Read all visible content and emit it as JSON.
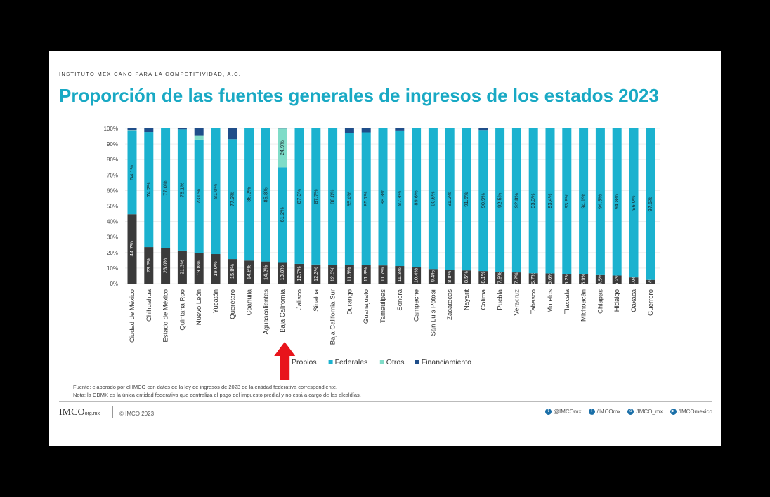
{
  "header": {
    "org": "INSTITUTO MEXICANO PARA LA COMPETITIVIDAD, A.C.",
    "title": "Proporción de las fuentes generales de ingresos de los estados 2023"
  },
  "colors": {
    "propios": "#3b3b3b",
    "federales": "#1bb2cf",
    "otros": "#7fdcc8",
    "financiamiento": "#1f4e8a",
    "arrow": "#e8141b",
    "title": "#19a9c4"
  },
  "chart_data": {
    "type": "bar",
    "stacked": true,
    "ylim": [
      0,
      100
    ],
    "yticks": [
      "0%",
      "10%",
      "20%",
      "30%",
      "40%",
      "50%",
      "60%",
      "70%",
      "80%",
      "90%",
      "100%"
    ],
    "categories": [
      "Ciudad de México",
      "Chihuahua",
      "Estado de México",
      "Quintana Roo",
      "Nuevo León",
      "Yucatán",
      "Querétaro",
      "Coahuila",
      "Aguascalientes",
      "Baja California",
      "Jalisco",
      "Sinaloa",
      "Baja California Sur",
      "Durango",
      "Guanajuato",
      "Tamaulipas",
      "Sonora",
      "Campeche",
      "San Luis Potosí",
      "Zacatecas",
      "Nayarit",
      "Colima",
      "Puebla",
      "Veracruz",
      "Tabasco",
      "Morelos",
      "Tlaxcala",
      "Michoacán",
      "Chiapas",
      "Hidalgo",
      "Oaxaca",
      "Guerrero"
    ],
    "series": [
      {
        "name": "Propios",
        "values": [
          44.7,
          23.5,
          23.0,
          21.3,
          19.8,
          19.0,
          15.8,
          14.8,
          14.2,
          13.8,
          12.7,
          12.3,
          12.0,
          11.8,
          11.8,
          11.7,
          11.3,
          10.4,
          9.4,
          8.8,
          8.5,
          8.1,
          7.5,
          7.2,
          6.7,
          6.6,
          6.2,
          5.9,
          5.5,
          5.2,
          4.0,
          2.4
        ]
      },
      {
        "name": "Federales",
        "values": [
          54.1,
          74.2,
          77.0,
          78.1,
          73.0,
          81.0,
          77.3,
          85.2,
          85.8,
          61.2,
          87.3,
          87.7,
          88.0,
          85.4,
          85.7,
          88.3,
          87.4,
          89.6,
          90.6,
          91.2,
          91.5,
          90.9,
          92.5,
          92.8,
          93.3,
          93.4,
          93.8,
          94.1,
          94.5,
          94.8,
          96.0,
          97.6
        ]
      },
      {
        "name": "Otros",
        "values": [
          0.2,
          0.0,
          0.0,
          0.0,
          2.4,
          0.0,
          0.0,
          0.0,
          0.0,
          24.9,
          0.0,
          0.0,
          0.0,
          0.0,
          0.0,
          0.0,
          0.0,
          0.0,
          0.0,
          0.0,
          0.0,
          0.0,
          0.0,
          0.0,
          0.0,
          0.0,
          0.0,
          0.0,
          0.0,
          0.0,
          0.0,
          0.0
        ]
      },
      {
        "name": "Financiamiento",
        "values": [
          1.0,
          2.3,
          0.0,
          0.6,
          4.8,
          0.0,
          6.9,
          0.0,
          0.0,
          0.1,
          0.0,
          0.0,
          0.0,
          2.8,
          2.5,
          0.0,
          1.3,
          0.0,
          0.0,
          0.0,
          0.0,
          1.0,
          0.0,
          0.0,
          0.0,
          0.0,
          0.0,
          0.0,
          0.0,
          0.0,
          0.0,
          0.0
        ]
      }
    ],
    "data_labels": {
      "Propios": [
        "44.7%",
        "23.5%",
        "23.0%",
        "21.3%",
        "19.8%",
        "19.0%",
        "15.8%",
        "14.8%",
        "14.2%",
        "13.8%",
        "12.7%",
        "12.3%",
        "12.0%",
        "11.8%",
        "11.8%",
        "11.7%",
        "11.3%",
        "10.4%",
        "9.4%",
        "8.8%",
        "8.5%",
        "8.1%",
        "7.5%",
        "7.2%",
        "6.7%",
        "6.6%",
        "6.2%",
        "5.9%",
        "5.5%",
        "5.2%",
        "4.0%",
        "2.4%"
      ],
      "Federales": [
        "54.1%",
        "74.2%",
        "77.0%",
        "78.1%",
        "73.0%",
        "81.0%",
        "77.3%",
        "85.2%",
        "85.8%",
        "61.2%",
        "87.3%",
        "87.7%",
        "88.0%",
        "85.4%",
        "85.7%",
        "88.3%",
        "87.4%",
        "89.6%",
        "90.6%",
        "91.2%",
        "91.5%",
        "90.9%",
        "92.5%",
        "92.8%",
        "93.3%",
        "93.4%",
        "93.8%",
        "94.1%",
        "94.5%",
        "94.8%",
        "96.0%",
        "97.6%"
      ],
      "Otros": [
        "",
        "",
        "",
        "",
        "",
        "",
        "",
        "",
        "",
        "24.9%",
        "",
        "",
        "",
        "",
        "",
        "",
        "",
        "",
        "",
        "",
        "",
        "",
        "",
        "",
        "",
        "",
        "",
        "",
        "",
        "",
        "",
        ""
      ]
    },
    "legend": [
      "Propios",
      "Federales",
      "Otros",
      "Financiamiento"
    ],
    "legend_position": "bottom",
    "highlight": {
      "category": "Baja California",
      "marker": "red-up-arrow"
    }
  },
  "footnotes": {
    "source": "Fuente: elaborado por el IMCO con datos de la ley de ingresos de 2023 de la entidad federativa correspondiente.",
    "note": "Nota: la CDMX es la única entidad federativa que centraliza el pago del impuesto predial y no está a cargo de las alcaldías."
  },
  "footer": {
    "logo": "IMCO",
    "logo_sub": "org.mx",
    "copyright": "© IMCO 2023",
    "social": [
      {
        "icon": "twitter-icon",
        "glyph": "t",
        "label": "@IMCOmx"
      },
      {
        "icon": "facebook-icon",
        "glyph": "f",
        "label": "/IMCOmx"
      },
      {
        "icon": "instagram-icon",
        "glyph": "o",
        "label": "/IMCO_mx"
      },
      {
        "icon": "youtube-icon",
        "glyph": "▶",
        "label": "/IMCOmexico"
      }
    ]
  }
}
